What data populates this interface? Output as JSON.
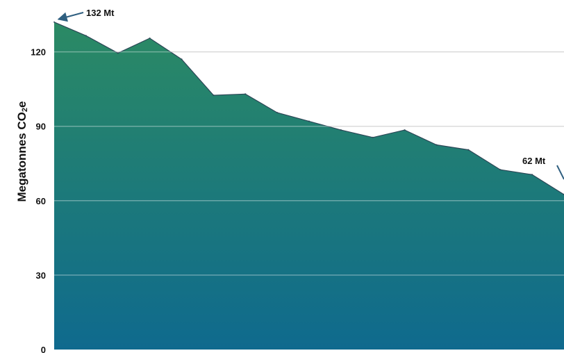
{
  "chart_data": {
    "type": "area",
    "ylabel": "Megatonnes CO",
    "ylabel_subscript": "2",
    "ylabel_suffix": "e",
    "ylim": [
      0,
      132
    ],
    "yticks": [
      0,
      30,
      60,
      90,
      120
    ],
    "grid": true,
    "series": [
      {
        "values": [
          132,
          126.5,
          119.5,
          125.5,
          117,
          102.5,
          103,
          95.5,
          92,
          88.5,
          85.5,
          88.5,
          82.5,
          80.5,
          72.5,
          70.5,
          62.5
        ]
      }
    ],
    "annotations": [
      {
        "text": "132 Mt",
        "point_index": 0
      },
      {
        "text": "62 Mt",
        "point_index": 16
      }
    ],
    "colors": {
      "fill_top": "#2b8a64",
      "fill_bottom": "#0f6a8e",
      "outline": "#2c4656",
      "grid": "#c8c8c8",
      "arrow": "#2f5f80"
    }
  }
}
